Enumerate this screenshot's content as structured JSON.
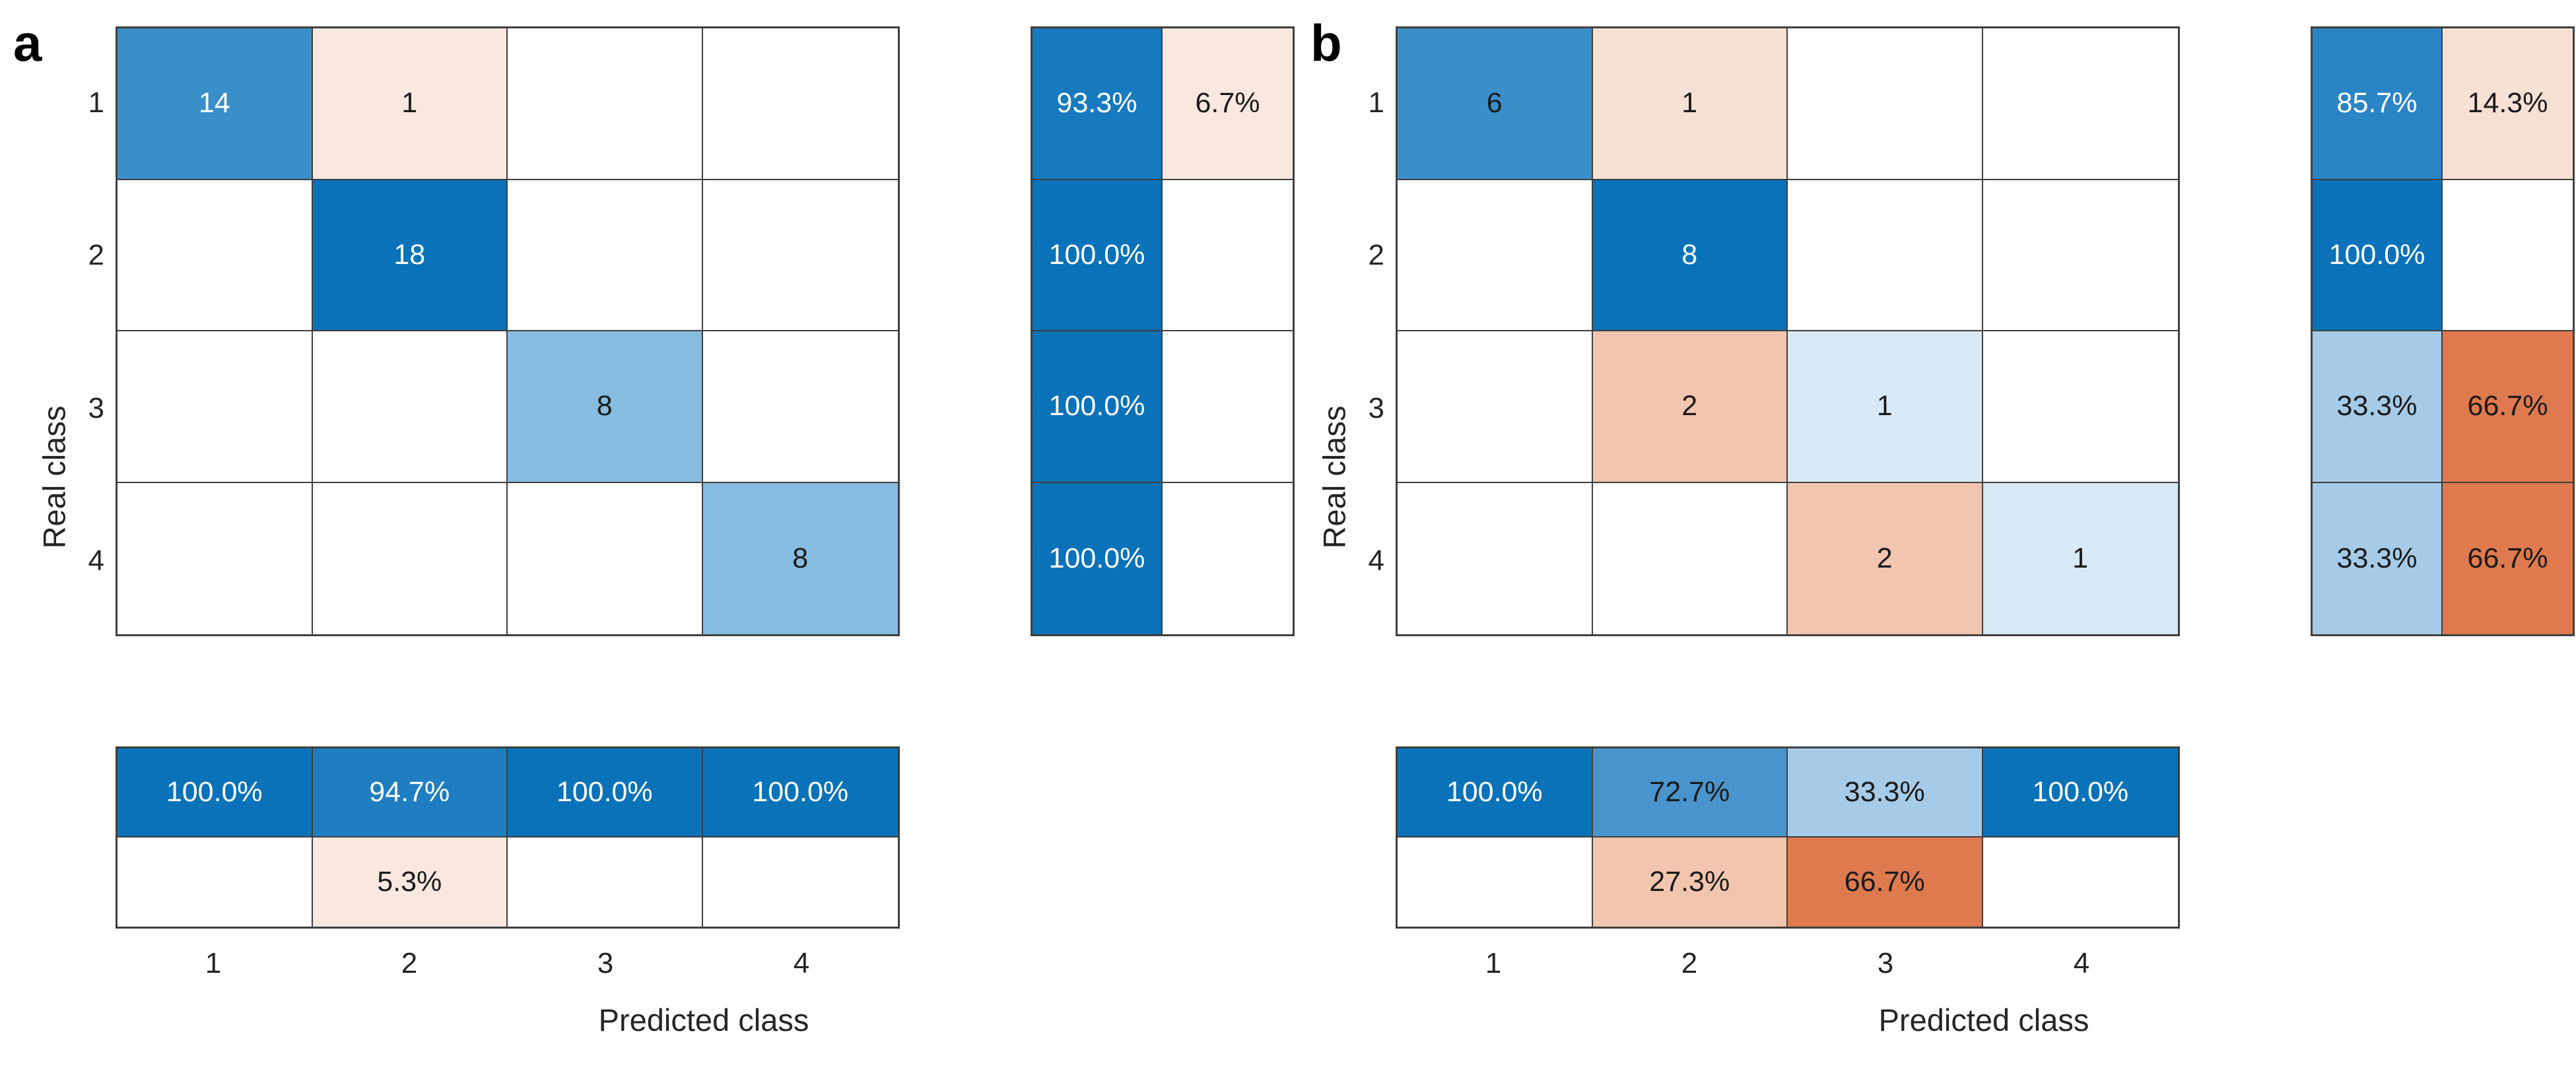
{
  "figure": {
    "xlabel": "Predicted class",
    "ylabel": "Real class",
    "tick_labels": [
      "1",
      "2",
      "3",
      "4"
    ]
  },
  "colors": {
    "diagonal_full": "#0a72b8",
    "diagonal_strong": "#1779be",
    "diagonal_medium": "#3a8fc9",
    "diagonal_light": "#85bce0",
    "diagonal_very_light": "#d8e8f5",
    "offdiag_strong": "#de7a4d",
    "offdiag_medium": "#f2c5ae",
    "offdiag_light": "#f7e0d4",
    "offdiag_very_light": "#f9e8e0",
    "grid_border": "#3f3f3f"
  },
  "panels": [
    {
      "letter": "a",
      "matrix": {
        "cells": [
          {
            "row": 1,
            "col": 1,
            "text": "14",
            "bg": "#3a8fc9",
            "fg": "#ffffff"
          },
          {
            "row": 1,
            "col": 2,
            "text": "1",
            "bg": "#f9e8e0",
            "fg": "#1a1a1a"
          },
          {
            "row": 2,
            "col": 2,
            "text": "18",
            "bg": "#0a72b8",
            "fg": "#ffffff"
          },
          {
            "row": 3,
            "col": 3,
            "text": "8",
            "bg": "#85bce0",
            "fg": "#1a1a1a"
          },
          {
            "row": 4,
            "col": 4,
            "text": "8",
            "bg": "#85bce0",
            "fg": "#1a1a1a"
          }
        ]
      },
      "row_summary": {
        "cells": [
          {
            "row": 1,
            "col": 1,
            "text": "93.3%",
            "bg": "#1779be",
            "fg": "#ffffff"
          },
          {
            "row": 1,
            "col": 2,
            "text": "6.7%",
            "bg": "#f9e8e0",
            "fg": "#1a1a1a"
          },
          {
            "row": 2,
            "col": 1,
            "text": "100.0%",
            "bg": "#0a72b8",
            "fg": "#ffffff"
          },
          {
            "row": 3,
            "col": 1,
            "text": "100.0%",
            "bg": "#0a72b8",
            "fg": "#ffffff"
          },
          {
            "row": 4,
            "col": 1,
            "text": "100.0%",
            "bg": "#0a72b8",
            "fg": "#ffffff"
          }
        ]
      },
      "col_summary": {
        "cells": [
          {
            "row": 1,
            "col": 1,
            "text": "100.0%",
            "bg": "#0a72b8",
            "fg": "#ffffff"
          },
          {
            "row": 1,
            "col": 2,
            "text": "94.7%",
            "bg": "#1f7ec1",
            "fg": "#ffffff"
          },
          {
            "row": 1,
            "col": 3,
            "text": "100.0%",
            "bg": "#0a72b8",
            "fg": "#ffffff"
          },
          {
            "row": 1,
            "col": 4,
            "text": "100.0%",
            "bg": "#0a72b8",
            "fg": "#ffffff"
          },
          {
            "row": 2,
            "col": 2,
            "text": "5.3%",
            "bg": "#f9e8e0",
            "fg": "#1a1a1a"
          }
        ]
      }
    },
    {
      "letter": "b",
      "matrix": {
        "cells": [
          {
            "row": 1,
            "col": 1,
            "text": "6",
            "bg": "#3a8fc9",
            "fg": "#1a1a1a"
          },
          {
            "row": 1,
            "col": 2,
            "text": "1",
            "bg": "#f7e0d4",
            "fg": "#1a1a1a"
          },
          {
            "row": 2,
            "col": 2,
            "text": "8",
            "bg": "#0a72b8",
            "fg": "#ffffff"
          },
          {
            "row": 3,
            "col": 2,
            "text": "2",
            "bg": "#f2c5ae",
            "fg": "#1a1a1a"
          },
          {
            "row": 3,
            "col": 3,
            "text": "1",
            "bg": "#d8e8f5",
            "fg": "#1a1a1a"
          },
          {
            "row": 4,
            "col": 3,
            "text": "2",
            "bg": "#f2c5ae",
            "fg": "#1a1a1a"
          },
          {
            "row": 4,
            "col": 4,
            "text": "1",
            "bg": "#d8e8f5",
            "fg": "#1a1a1a"
          }
        ]
      },
      "row_summary": {
        "cells": [
          {
            "row": 1,
            "col": 1,
            "text": "85.7%",
            "bg": "#2b85c5",
            "fg": "#ffffff"
          },
          {
            "row": 1,
            "col": 2,
            "text": "14.3%",
            "bg": "#f7e0d4",
            "fg": "#1a1a1a"
          },
          {
            "row": 2,
            "col": 1,
            "text": "100.0%",
            "bg": "#0a72b8",
            "fg": "#ffffff"
          },
          {
            "row": 3,
            "col": 1,
            "text": "33.3%",
            "bg": "#a5cbe8",
            "fg": "#1a1a1a"
          },
          {
            "row": 3,
            "col": 2,
            "text": "66.7%",
            "bg": "#de7a4d",
            "fg": "#1a1a1a"
          },
          {
            "row": 4,
            "col": 1,
            "text": "33.3%",
            "bg": "#a5cbe8",
            "fg": "#1a1a1a"
          },
          {
            "row": 4,
            "col": 2,
            "text": "66.7%",
            "bg": "#de7a4d",
            "fg": "#1a1a1a"
          }
        ]
      },
      "col_summary": {
        "cells": [
          {
            "row": 1,
            "col": 1,
            "text": "100.0%",
            "bg": "#0a72b8",
            "fg": "#ffffff"
          },
          {
            "row": 1,
            "col": 2,
            "text": "72.7%",
            "bg": "#4a94cd",
            "fg": "#1a1a1a"
          },
          {
            "row": 1,
            "col": 3,
            "text": "33.3%",
            "bg": "#a5cbe8",
            "fg": "#1a1a1a"
          },
          {
            "row": 1,
            "col": 4,
            "text": "100.0%",
            "bg": "#0a72b8",
            "fg": "#ffffff"
          },
          {
            "row": 2,
            "col": 2,
            "text": "27.3%",
            "bg": "#f2c5ae",
            "fg": "#1a1a1a"
          },
          {
            "row": 2,
            "col": 3,
            "text": "66.7%",
            "bg": "#de7a4d",
            "fg": "#1a1a1a"
          }
        ]
      }
    }
  ],
  "chart_data": [
    {
      "type": "heatmap",
      "title": "a",
      "xlabel": "Predicted class",
      "ylabel": "Real class",
      "classes": [
        "1",
        "2",
        "3",
        "4"
      ],
      "matrix": [
        [
          14,
          1,
          0,
          0
        ],
        [
          0,
          18,
          0,
          0
        ],
        [
          0,
          0,
          8,
          0
        ],
        [
          0,
          0,
          0,
          8
        ]
      ],
      "row_summary_pct": {
        "correct": [
          93.3,
          100.0,
          100.0,
          100.0
        ],
        "incorrect": [
          6.7,
          0,
          0,
          0
        ]
      },
      "col_summary_pct": {
        "correct": [
          100.0,
          94.7,
          100.0,
          100.0
        ],
        "incorrect": [
          0,
          5.3,
          0,
          0
        ]
      },
      "legend_position": "none",
      "grid": true
    },
    {
      "type": "heatmap",
      "title": "b",
      "xlabel": "Predicted class",
      "ylabel": "Real class",
      "classes": [
        "1",
        "2",
        "3",
        "4"
      ],
      "matrix": [
        [
          6,
          1,
          0,
          0
        ],
        [
          0,
          8,
          0,
          0
        ],
        [
          0,
          2,
          1,
          0
        ],
        [
          0,
          0,
          2,
          1
        ]
      ],
      "row_summary_pct": {
        "correct": [
          85.7,
          100.0,
          33.3,
          33.3
        ],
        "incorrect": [
          14.3,
          0,
          66.7,
          66.7
        ]
      },
      "col_summary_pct": {
        "correct": [
          100.0,
          72.7,
          33.3,
          100.0
        ],
        "incorrect": [
          0,
          27.3,
          66.7,
          0
        ]
      },
      "legend_position": "none",
      "grid": true
    }
  ]
}
